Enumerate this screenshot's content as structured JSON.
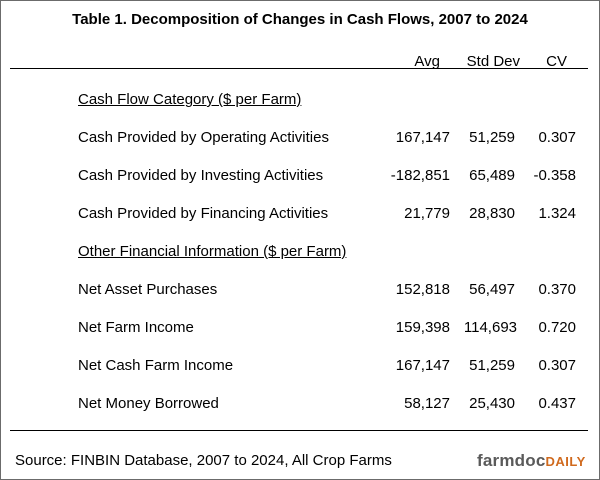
{
  "title": "Table 1.  Decomposition of Changes in Cash Flows, 2007 to 2024",
  "columns": [
    "Avg",
    "Std Dev",
    "CV"
  ],
  "sections": [
    {
      "heading": "Cash Flow Category ($ per Farm)",
      "rows": [
        {
          "label": "Cash Provided by Operating Activities",
          "avg": "167,147",
          "std": "51,259",
          "cv": "0.307"
        },
        {
          "label": "Cash Provided by Investing Activities",
          "avg": "-182,851",
          "std": "65,489",
          "cv": "-0.358"
        },
        {
          "label": "Cash Provided by Financing Activities",
          "avg": "21,779",
          "std": "28,830",
          "cv": "1.324"
        }
      ]
    },
    {
      "heading": "Other Financial Information ($ per Farm)",
      "rows": [
        {
          "label": "Net Asset Purchases",
          "avg": "152,818",
          "std": "56,497",
          "cv": "0.370"
        },
        {
          "label": "Net Farm Income",
          "avg": "159,398",
          "std": "114,693",
          "cv": "0.720"
        },
        {
          "label": "Net Cash Farm Income",
          "avg": "167,147",
          "std": "51,259",
          "cv": "0.307"
        },
        {
          "label": "Net Money Borrowed",
          "avg": "58,127",
          "std": "25,430",
          "cv": "0.437"
        }
      ]
    }
  ],
  "source": "Source: FINBIN Database, 2007 to 2024, All Crop Farms",
  "logo": {
    "part1": "farmdoc",
    "part2": "DAILY"
  }
}
